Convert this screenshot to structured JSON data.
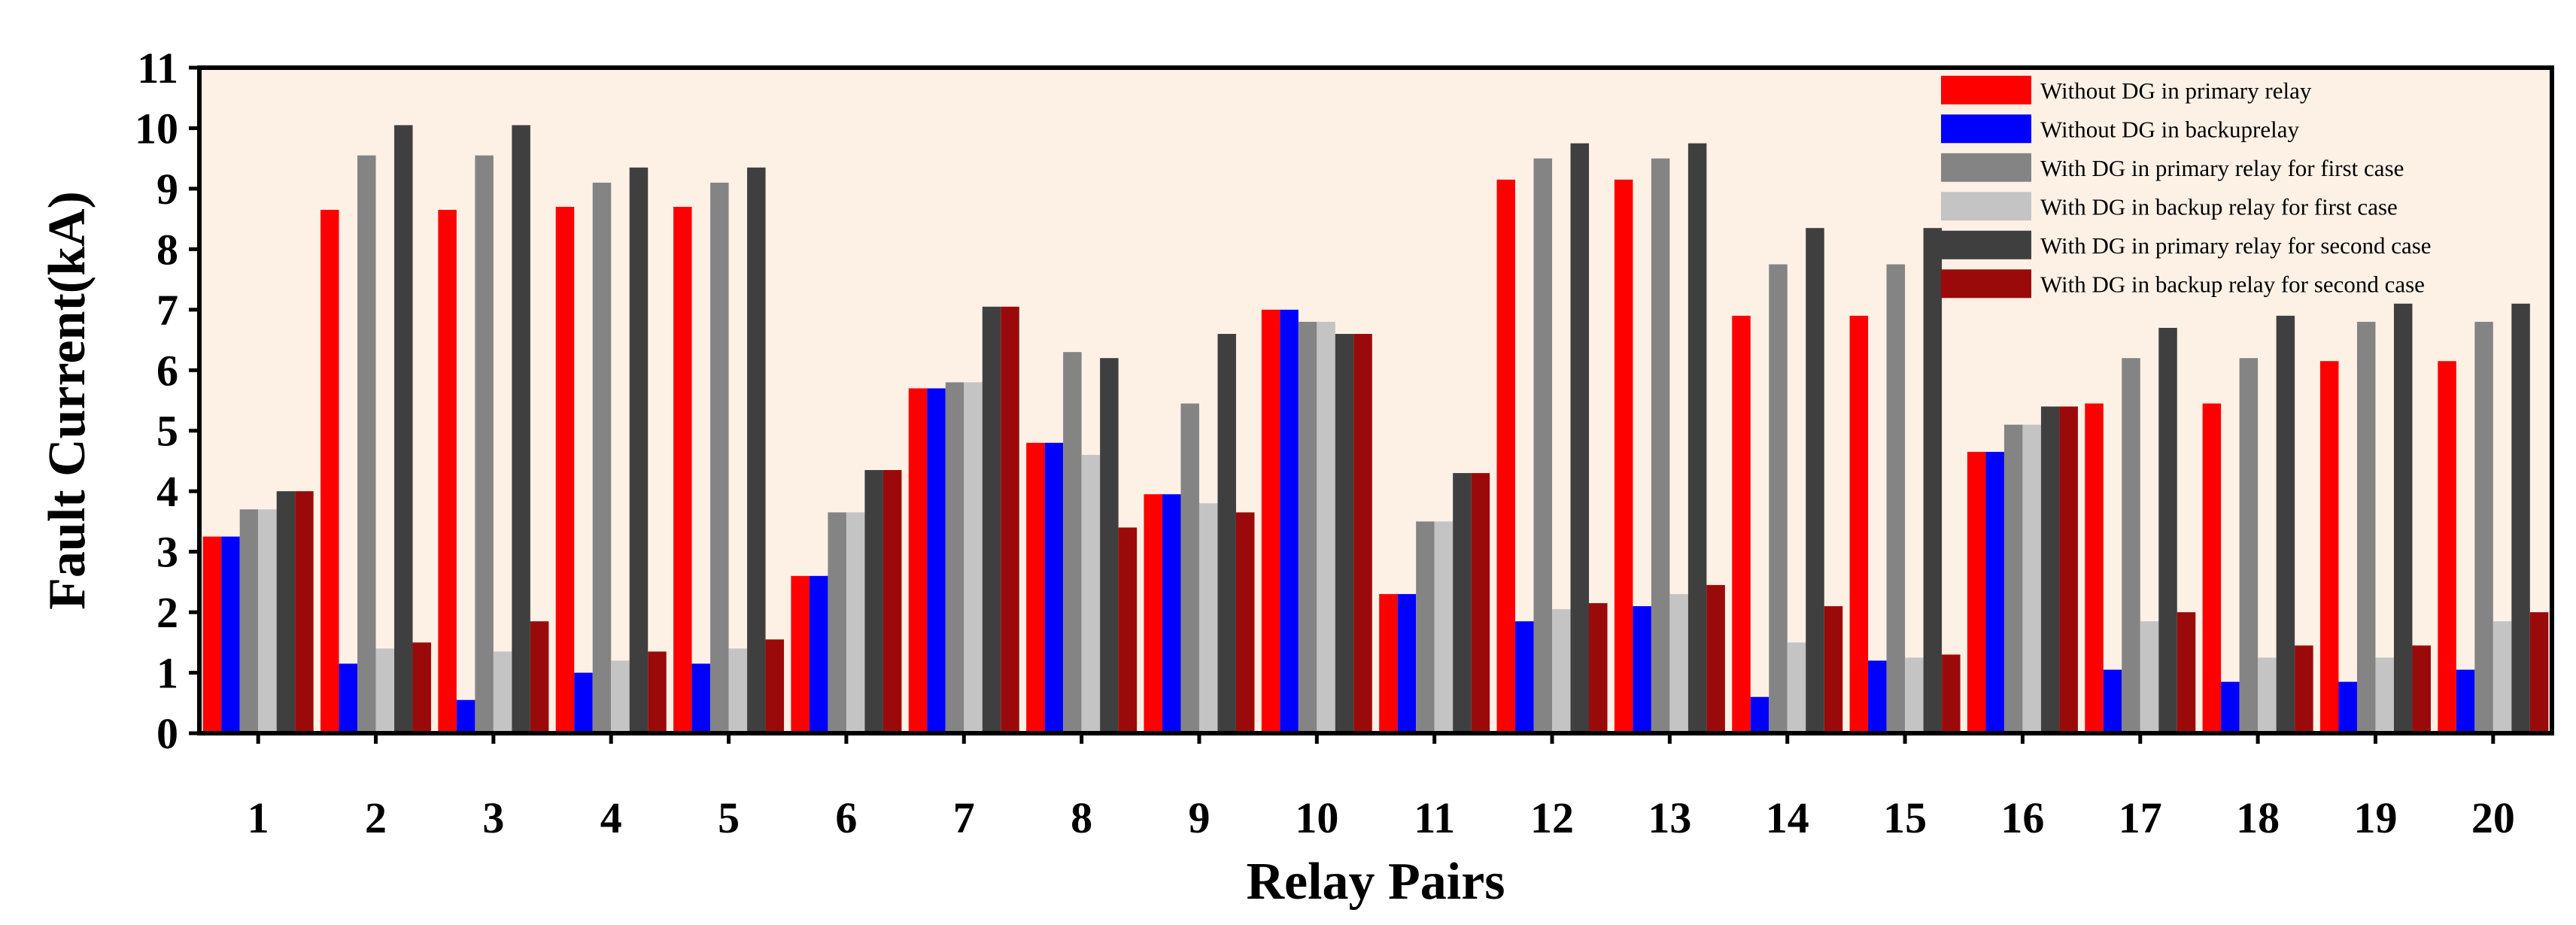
{
  "chart_data": {
    "type": "bar",
    "title": "",
    "xlabel": "Relay Pairs",
    "ylabel": "Fault Current(kA)",
    "ylim": [
      0,
      11
    ],
    "yticks": [
      0,
      1,
      2,
      3,
      4,
      5,
      6,
      7,
      8,
      9,
      10,
      11
    ],
    "grid": false,
    "legend_position": "top-right",
    "plot_background": "#fdf1e6",
    "categories": [
      "1",
      "2",
      "3",
      "4",
      "5",
      "6",
      "7",
      "8",
      "9",
      "10",
      "11",
      "12",
      "13",
      "14",
      "15",
      "16",
      "17",
      "18",
      "19",
      "20"
    ],
    "series": [
      {
        "name": "Without DG in primary relay",
        "color": "#ff0000",
        "values": [
          3.25,
          8.65,
          8.65,
          8.7,
          8.7,
          2.6,
          5.7,
          4.8,
          3.95,
          7.0,
          2.3,
          9.15,
          9.15,
          6.9,
          6.9,
          4.65,
          5.45,
          5.45,
          6.15,
          6.15
        ]
      },
      {
        "name": "Without DG in backuprelay",
        "color": "#0000ff",
        "values": [
          3.25,
          1.15,
          0.55,
          1.0,
          1.15,
          2.6,
          5.7,
          4.8,
          3.95,
          7.0,
          2.3,
          1.85,
          2.1,
          0.6,
          1.2,
          4.65,
          1.05,
          0.85,
          0.85,
          1.05
        ]
      },
      {
        "name": "With DG in primary relay for first case",
        "color": "#848484",
        "values": [
          3.7,
          9.55,
          9.55,
          9.1,
          9.1,
          3.65,
          5.8,
          6.3,
          5.45,
          6.8,
          3.5,
          9.5,
          9.5,
          7.75,
          7.75,
          5.1,
          6.2,
          6.2,
          6.8,
          6.8
        ]
      },
      {
        "name": "With DG in backup relay for first case",
        "color": "#c4c4c4",
        "values": [
          3.7,
          1.4,
          1.35,
          1.2,
          1.4,
          3.65,
          5.8,
          4.6,
          3.8,
          6.8,
          3.5,
          2.05,
          2.3,
          1.5,
          1.25,
          5.1,
          1.85,
          1.25,
          1.25,
          1.85
        ]
      },
      {
        "name": "With DG in primary relay for second case",
        "color": "#3f3f3f",
        "values": [
          4.0,
          10.05,
          10.05,
          9.35,
          9.35,
          4.35,
          7.05,
          6.2,
          6.6,
          6.6,
          4.3,
          9.75,
          9.75,
          8.35,
          8.35,
          5.4,
          6.7,
          6.9,
          7.1,
          7.1
        ]
      },
      {
        "name": "With DG in backup relay for second case",
        "color": "#9b0a0a",
        "values": [
          4.0,
          1.5,
          1.85,
          1.35,
          1.55,
          4.35,
          7.05,
          3.4,
          3.65,
          6.6,
          4.3,
          2.15,
          2.45,
          2.1,
          1.3,
          5.4,
          2.0,
          1.45,
          1.45,
          2.0
        ]
      }
    ]
  }
}
